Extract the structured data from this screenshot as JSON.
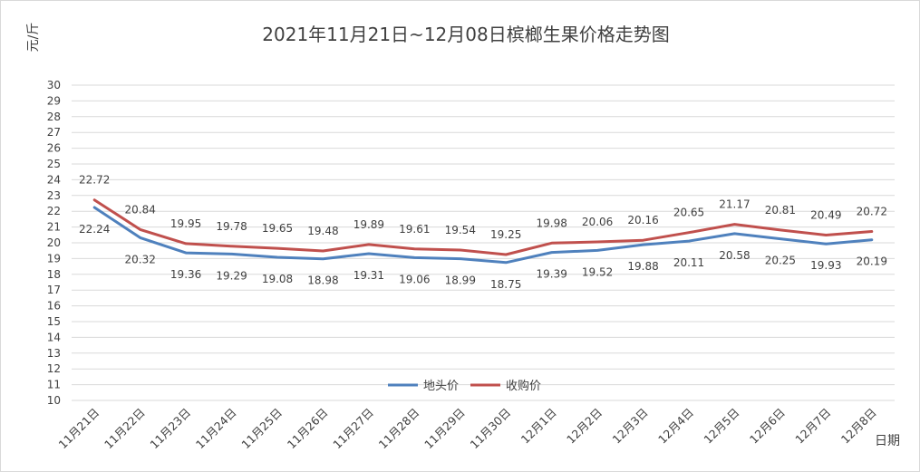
{
  "chart_data": {
    "type": "line",
    "title": "2021年11月21日~12月08日槟榔生果价格走势图",
    "ylabel": "元/斤",
    "xlabel": "日期",
    "ylim": [
      10,
      30
    ],
    "ytick_step": 1,
    "grid": true,
    "legend_position": "bottom-center",
    "categories": [
      "11月21日",
      "11月22日",
      "11月23日",
      "11月24日",
      "11月25日",
      "11月26日",
      "11月27日",
      "11月28日",
      "11月29日",
      "11月30日",
      "12月1日",
      "12月2日",
      "12月3日",
      "12月4日",
      "12月5日",
      "12月6日",
      "12月7日",
      "12月8日"
    ],
    "series": [
      {
        "name": "地头价",
        "color": "#4f81bd",
        "values": [
          22.24,
          20.32,
          19.36,
          19.29,
          19.08,
          18.98,
          19.31,
          19.06,
          18.99,
          18.75,
          19.39,
          19.52,
          19.88,
          20.11,
          20.58,
          20.25,
          19.93,
          20.19
        ],
        "label_position": "below"
      },
      {
        "name": "收购价",
        "color": "#c0504d",
        "values": [
          22.72,
          20.84,
          19.95,
          19.78,
          19.65,
          19.48,
          19.89,
          19.61,
          19.54,
          19.25,
          19.98,
          20.06,
          20.16,
          20.65,
          21.17,
          20.81,
          20.49,
          20.72
        ],
        "label_position": "above"
      }
    ]
  }
}
